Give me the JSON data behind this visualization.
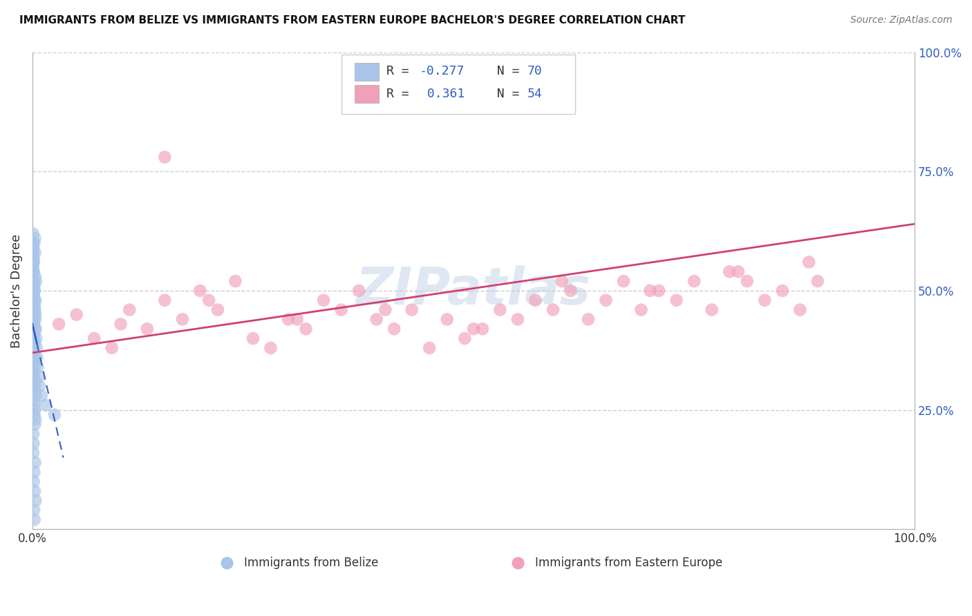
{
  "title": "IMMIGRANTS FROM BELIZE VS IMMIGRANTS FROM EASTERN EUROPE BACHELOR'S DEGREE CORRELATION CHART",
  "source": "Source: ZipAtlas.com",
  "ylabel": "Bachelor's Degree",
  "watermark": "ZIPatlas",
  "belize_color": "#a8c4e8",
  "eastern_color": "#f0a0b8",
  "belize_line_color": "#3060c0",
  "eastern_line_color": "#d04070",
  "background_color": "#ffffff",
  "grid_color": "#cccccc",
  "xlim": [
    0,
    100
  ],
  "ylim": [
    0,
    100
  ],
  "belize_x": [
    0.2,
    0.3,
    0.15,
    0.1,
    0.4,
    0.25,
    0.35,
    0.18,
    0.22,
    0.28,
    0.12,
    0.08,
    0.3,
    0.2,
    0.15,
    0.25,
    0.35,
    0.18,
    0.22,
    0.28,
    0.1,
    0.12,
    0.08,
    0.3,
    0.2,
    0.15,
    0.25,
    0.35,
    0.18,
    0.22,
    0.28,
    0.1,
    0.12,
    0.08,
    0.3,
    0.2,
    0.15,
    0.25,
    0.35,
    0.18,
    0.22,
    0.28,
    0.1,
    0.12,
    0.08,
    0.3,
    0.2,
    0.15,
    0.25,
    0.35,
    0.05,
    0.07,
    0.09,
    0.11,
    0.13,
    0.16,
    0.19,
    0.23,
    0.27,
    0.32,
    0.37,
    0.42,
    0.47,
    0.52,
    0.6,
    0.7,
    0.8,
    1.0,
    1.5,
    2.5
  ],
  "belize_y": [
    60,
    58,
    56,
    54,
    52,
    50,
    48,
    46,
    44,
    42,
    40,
    38,
    36,
    34,
    32,
    30,
    28,
    26,
    24,
    22,
    20,
    18,
    16,
    14,
    12,
    10,
    8,
    6,
    4,
    2,
    61,
    59,
    57,
    55,
    53,
    51,
    49,
    47,
    45,
    43,
    41,
    39,
    37,
    35,
    33,
    31,
    29,
    27,
    25,
    23,
    62,
    60,
    58,
    56,
    54,
    52,
    50,
    48,
    46,
    44,
    42,
    40,
    38,
    36,
    34,
    32,
    30,
    28,
    26,
    24
  ],
  "eastern_x": [
    3,
    5,
    7,
    9,
    11,
    13,
    15,
    17,
    19,
    21,
    23,
    25,
    27,
    29,
    31,
    33,
    35,
    37,
    39,
    41,
    43,
    45,
    47,
    49,
    51,
    53,
    55,
    57,
    59,
    61,
    63,
    65,
    67,
    69,
    71,
    73,
    75,
    77,
    79,
    81,
    83,
    85,
    87,
    89,
    10,
    20,
    30,
    40,
    50,
    60,
    70,
    80,
    88,
    15
  ],
  "eastern_y": [
    43,
    45,
    40,
    38,
    46,
    42,
    48,
    44,
    50,
    46,
    52,
    40,
    38,
    44,
    42,
    48,
    46,
    50,
    44,
    42,
    46,
    38,
    44,
    40,
    42,
    46,
    44,
    48,
    46,
    50,
    44,
    48,
    52,
    46,
    50,
    48,
    52,
    46,
    54,
    52,
    48,
    50,
    46,
    52,
    43,
    48,
    44,
    46,
    42,
    52,
    50,
    54,
    56,
    78
  ],
  "belize_trend_x": [
    0,
    3.5
  ],
  "belize_trend_y_start": 43,
  "belize_trend_slope": -8,
  "eastern_trend_y_start": 37,
  "eastern_trend_slope": 0.27
}
